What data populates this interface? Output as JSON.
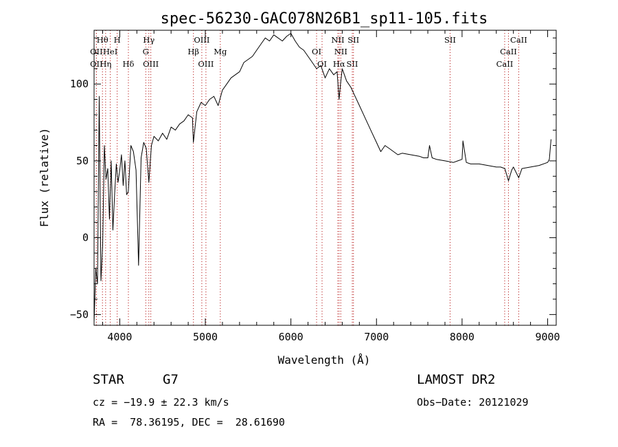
{
  "chart_data": {
    "type": "line",
    "title": "spec-56230-GAC078N26B1_sp11-105.fits",
    "xlabel": "Wavelength (Å)",
    "ylabel": "Flux (relative)",
    "xlim": [
      3700,
      9100
    ],
    "ylim": [
      -57,
      135
    ],
    "x_ticks": [
      4000,
      5000,
      6000,
      7000,
      8000,
      9000
    ],
    "y_ticks": [
      -50,
      0,
      50,
      100
    ],
    "x_minor_step": 200,
    "y_minor_step": 10,
    "grid": false,
    "series": [
      {
        "x": [
          3700,
          3720,
          3740,
          3760,
          3780,
          3800,
          3820,
          3840,
          3860,
          3880,
          3900,
          3920,
          3940,
          3960,
          3980,
          4000,
          4020,
          4040,
          4060,
          4080,
          4100,
          4130,
          4160,
          4190,
          4220,
          4250,
          4280,
          4310,
          4340,
          4370,
          4400,
          4450,
          4500,
          4550,
          4600,
          4650,
          4700,
          4750,
          4800,
          4850,
          4860,
          4900,
          4950,
          5000,
          5050,
          5100,
          5150,
          5200,
          5250,
          5300,
          5350,
          5400,
          5450,
          5500,
          5550,
          5600,
          5650,
          5700,
          5750,
          5800,
          5850,
          5900,
          5950,
          6000,
          6050,
          6100,
          6150,
          6200,
          6250,
          6300,
          6350,
          6400,
          6450,
          6500,
          6540,
          6563,
          6580,
          6600,
          6650,
          6700,
          6750,
          6800,
          6850,
          6900,
          6950,
          7000,
          7050,
          7100,
          7150,
          7200,
          7250,
          7300,
          7400,
          7500,
          7550,
          7600,
          7620,
          7650,
          7700,
          7800,
          7900,
          7950,
          8000,
          8010,
          8050,
          8100,
          8200,
          8300,
          8400,
          8450,
          8500,
          8542,
          8580,
          8600,
          8662,
          8700,
          8800,
          8900,
          9000,
          9020,
          9040
        ],
        "y": [
          -55,
          -20,
          -30,
          92,
          -28,
          -5,
          60,
          38,
          45,
          12,
          50,
          5,
          28,
          48,
          36,
          44,
          54,
          34,
          50,
          28,
          30,
          60,
          56,
          44,
          -18,
          52,
          62,
          58,
          36,
          60,
          66,
          63,
          68,
          64,
          72,
          70,
          74,
          76,
          80,
          78,
          62,
          82,
          88,
          86,
          90,
          92,
          86,
          96,
          100,
          104,
          106,
          108,
          114,
          116,
          118,
          122,
          126,
          130,
          128,
          132,
          130,
          128,
          131,
          133,
          128,
          124,
          122,
          118,
          114,
          110,
          112,
          104,
          110,
          106,
          108,
          90,
          100,
          110,
          102,
          98,
          92,
          86,
          80,
          74,
          68,
          62,
          56,
          60,
          58,
          56,
          54,
          55,
          54,
          53,
          52,
          52,
          60,
          52,
          51,
          50,
          49,
          50,
          51,
          63,
          49,
          48,
          48,
          47,
          46,
          46,
          45,
          37,
          44,
          46,
          39,
          45,
          46,
          47,
          49,
          51,
          64
        ]
      }
    ],
    "line_marks": [
      {
        "label": "Hθ",
        "x": 3798,
        "row": 0
      },
      {
        "label": "OII",
        "x": 3727,
        "row": 1
      },
      {
        "label": "HeI",
        "x": 3889,
        "row": 1
      },
      {
        "label": "OII",
        "x": 3727,
        "row": 2
      },
      {
        "label": "Hη",
        "x": 3835,
        "row": 2
      },
      {
        "label": "H",
        "x": 3970,
        "row": 0
      },
      {
        "label": "Hδ",
        "x": 4101,
        "row": 2
      },
      {
        "label": "Hγ",
        "x": 4340,
        "row": 0
      },
      {
        "label": "G",
        "x": 4304,
        "row": 1
      },
      {
        "label": "OIII",
        "x": 4363,
        "row": 2
      },
      {
        "label": "OIII",
        "x": 4959,
        "row": 0
      },
      {
        "label": "Hβ",
        "x": 4861,
        "row": 1
      },
      {
        "label": "Mg",
        "x": 5175,
        "row": 1
      },
      {
        "label": "OIII",
        "x": 5007,
        "row": 2
      },
      {
        "label": "OI",
        "x": 6300,
        "row": 1
      },
      {
        "label": "OI",
        "x": 6364,
        "row": 2
      },
      {
        "label": "NII",
        "x": 6548,
        "row": 0
      },
      {
        "label": "NII",
        "x": 6583,
        "row": 1
      },
      {
        "label": "Hα",
        "x": 6563,
        "row": 2
      },
      {
        "label": "SII",
        "x": 6717,
        "row": 2
      },
      {
        "label": "SII",
        "x": 6731,
        "row": 0
      },
      {
        "label": "SII",
        "x": 7860,
        "row": 0
      },
      {
        "label": "CaII",
        "x": 8662,
        "row": 0
      },
      {
        "label": "CaII",
        "x": 8542,
        "row": 1
      },
      {
        "label": "CaII",
        "x": 8498,
        "row": 2
      }
    ]
  },
  "info": {
    "class_label": "STAR",
    "subclass": "G7",
    "survey": "LAMOST DR2",
    "cz": "cz = −19.9 ± 22.3 km/s",
    "obs_date": "Obs−Date: 20121029",
    "radec": "RA =  78.36195, DEC =  28.61690"
  },
  "colors": {
    "axis": "#000000",
    "spectrum": "#000000",
    "line_marker": "#b00000"
  }
}
